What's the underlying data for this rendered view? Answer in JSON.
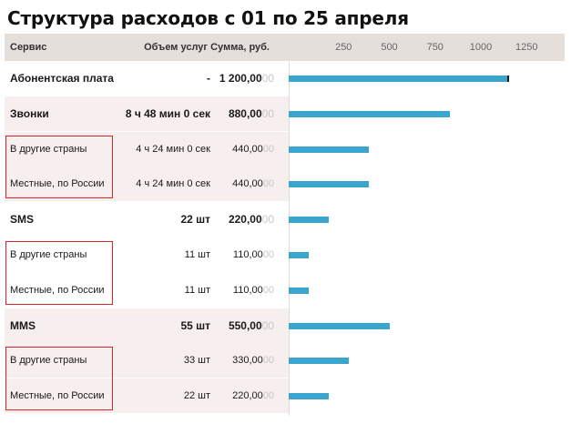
{
  "title": "Структура расходов с 01 по 25 апреля",
  "colors": {
    "bar": "#3aa6d0",
    "header_bg": "#e4dfdb",
    "row_shade": "#f7eeee",
    "highlight_border": "#d9262c"
  },
  "header": {
    "service": "Сервис",
    "volume": "Объем услуг",
    "sum": "Сумма, руб.",
    "ticks": [
      250,
      500,
      750,
      1000,
      1250
    ]
  },
  "rows": [
    {
      "service": "Абонентская плата",
      "volume": "-",
      "amount": "1 200,00",
      "amount_dec": "00",
      "value": 1200,
      "level": "main",
      "shade": false,
      "end_marker": true
    },
    {
      "service": "Звонки",
      "volume": "8 ч 48 мин 0 сек",
      "amount": "880,00",
      "amount_dec": "00",
      "value": 880,
      "level": "main",
      "shade": true
    },
    {
      "service": "В другие страны",
      "volume": "4 ч 24 мин 0 сек",
      "amount": "440,00",
      "amount_dec": "00",
      "value": 440,
      "level": "sub",
      "shade": true
    },
    {
      "service": "Местные, по России",
      "volume": "4 ч 24 мин 0 сек",
      "amount": "440,00",
      "amount_dec": "00",
      "value": 440,
      "level": "sub",
      "shade": true
    },
    {
      "service": "SMS",
      "volume": "22 шт",
      "amount": "220,00",
      "amount_dec": "00",
      "value": 220,
      "level": "main",
      "shade": false
    },
    {
      "service": "В другие страны",
      "volume": "11 шт",
      "amount": "110,00",
      "amount_dec": "00",
      "value": 110,
      "level": "sub",
      "shade": false
    },
    {
      "service": "Местные, по России",
      "volume": "11 шт",
      "amount": "110,00",
      "amount_dec": "00",
      "value": 110,
      "level": "sub",
      "shade": false
    },
    {
      "service": "MMS",
      "volume": "55 шт",
      "amount": "550,00",
      "amount_dec": "00",
      "value": 550,
      "level": "main",
      "shade": true
    },
    {
      "service": "В другие страны",
      "volume": "33 шт",
      "amount": "330,00",
      "amount_dec": "00",
      "value": 330,
      "level": "sub",
      "shade": true
    },
    {
      "service": "Местные, по России",
      "volume": "22 шт",
      "amount": "220,00",
      "amount_dec": "00",
      "value": 220,
      "level": "sub",
      "shade": true
    }
  ],
  "highlight_groups": [
    [
      2,
      3
    ],
    [
      5,
      6
    ],
    [
      8,
      9
    ]
  ]
}
